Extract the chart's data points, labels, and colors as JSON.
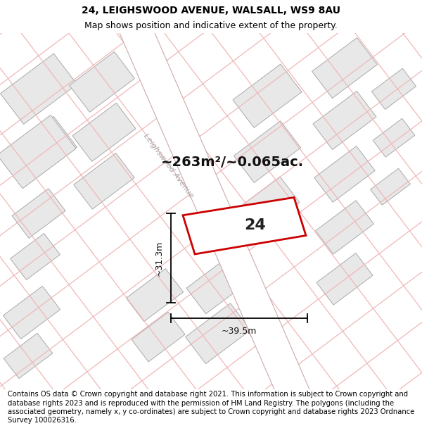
{
  "title_line1": "24, LEIGHSWOOD AVENUE, WALSALL, WS9 8AU",
  "title_line2": "Map shows position and indicative extent of the property.",
  "footer_text": "Contains OS data © Crown copyright and database right 2021. This information is subject to Crown copyright and database rights 2023 and is reproduced with the permission of HM Land Registry. The polygons (including the associated geometry, namely x, y co-ordinates) are subject to Crown copyright and database rights 2023 Ordnance Survey 100026316.",
  "area_label": "~263m²/~0.065ac.",
  "property_number": "24",
  "dim_width": "~39.5m",
  "dim_height": "~31.3m",
  "street_label": "Leighswood Avenue",
  "map_bg": "#ffffff",
  "property_fill": "#ffffff",
  "property_edge": "#cc0000",
  "building_fill": "#e8e8e8",
  "building_edge": "#aaaaaa",
  "road_line_color": "#f0b8b8",
  "title_fontsize": 10,
  "subtitle_fontsize": 9,
  "label_fontsize": 14,
  "number_fontsize": 16,
  "footer_fontsize": 7.2
}
